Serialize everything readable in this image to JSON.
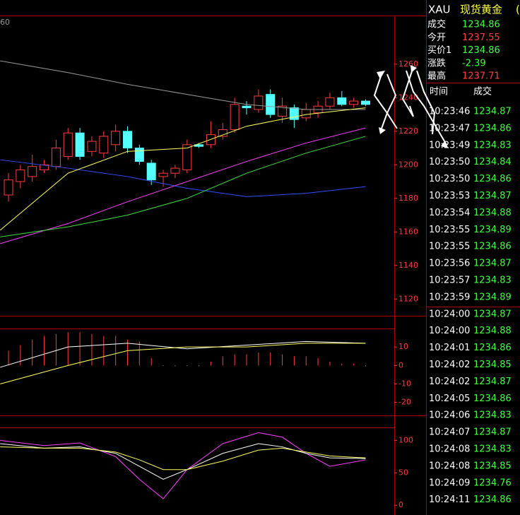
{
  "chart_label": "60",
  "chart_data": [
    {
      "type": "candlestick",
      "ylim": [
        1110,
        1289
      ],
      "yticks": [
        1260,
        1240,
        1220,
        1200,
        1180,
        1160,
        1140,
        1120
      ],
      "up_color": "#ff3c3c",
      "down_color": "#54ffff",
      "open": [
        1182,
        1190,
        1193,
        1197,
        1199,
        1205,
        1219,
        1208,
        1207,
        1212,
        1220,
        1210,
        1201,
        1193,
        1195,
        1197,
        1212,
        1212,
        1217,
        1221,
        1235,
        1233,
        1242,
        1229,
        1234,
        1228,
        1231,
        1235,
        1240,
        1236,
        1238
      ],
      "high": [
        1195,
        1200,
        1206,
        1203,
        1215,
        1222,
        1222,
        1217,
        1220,
        1224,
        1223,
        1212,
        1203,
        1197,
        1200,
        1215,
        1213,
        1226,
        1225,
        1240,
        1238,
        1245,
        1245,
        1240,
        1236,
        1237,
        1238,
        1243,
        1244,
        1240,
        1239
      ],
      "low": [
        1178,
        1186,
        1190,
        1195,
        1197,
        1203,
        1203,
        1205,
        1204,
        1208,
        1207,
        1200,
        1188,
        1187,
        1192,
        1195,
        1210,
        1210,
        1215,
        1219,
        1230,
        1231,
        1228,
        1225,
        1222,
        1226,
        1228,
        1233,
        1235,
        1234,
        1235
      ],
      "close": [
        1191,
        1197,
        1199,
        1200,
        1210,
        1219,
        1205,
        1214,
        1217,
        1220,
        1210,
        1202,
        1191,
        1195,
        1198,
        1212,
        1211,
        1218,
        1221,
        1236,
        1234,
        1241,
        1230,
        1235,
        1227,
        1233,
        1235,
        1240,
        1236,
        1238,
        1236
      ],
      "lines": [
        {
          "color": "#9a9a9a",
          "x": [
            -0.7,
            5,
            10,
            15,
            20,
            25,
            30
          ],
          "values": [
            1262,
            1255,
            1248,
            1242,
            1236,
            1233,
            1233
          ]
        },
        {
          "color": "#3050ff",
          "x": [
            -0.7,
            5,
            10,
            15,
            20,
            25,
            30
          ],
          "values": [
            1203,
            1198,
            1193,
            1186,
            1181,
            1183,
            1187
          ]
        },
        {
          "color": "#ff40ff",
          "x": [
            -0.7,
            5,
            10,
            15,
            20,
            25,
            30
          ],
          "values": [
            1153,
            1165,
            1178,
            1190,
            1202,
            1213,
            1222
          ]
        },
        {
          "color": "#40e040",
          "x": [
            -0.7,
            5,
            10,
            15,
            20,
            25,
            30
          ],
          "values": [
            1157,
            1163,
            1170,
            1180,
            1195,
            1207,
            1217
          ]
        },
        {
          "color": "#ffff60",
          "x": [
            -0.7,
            5,
            10,
            15,
            20,
            25,
            30
          ],
          "values": [
            1161,
            1195,
            1208,
            1210,
            1223,
            1230,
            1234
          ]
        }
      ]
    },
    {
      "type": "bar",
      "ylim": [
        -27,
        20
      ],
      "yticks": [
        10,
        0,
        -10,
        -20
      ],
      "color": "#ff3c3c",
      "neg_color": "#c8c8c8",
      "values": [
        8,
        11,
        14,
        16,
        17,
        18,
        18,
        17,
        16,
        16,
        14,
        13,
        4,
        -0.3,
        -0.3,
        -0.3,
        -0.3,
        2,
        5,
        6,
        6,
        7,
        7,
        6,
        5,
        5,
        4,
        2,
        1,
        1,
        -0.3
      ],
      "lines": [
        {
          "color": "#ffffff",
          "x": [
            -0.7,
            5,
            10,
            15,
            20,
            25,
            30
          ],
          "values": [
            -1,
            10,
            12,
            9,
            11,
            13,
            12
          ]
        },
        {
          "color": "#ffff60",
          "x": [
            -0.7,
            5,
            10,
            15,
            20,
            25,
            30
          ],
          "values": [
            -10,
            0,
            8,
            10,
            10,
            12,
            12
          ]
        }
      ]
    },
    {
      "type": "line",
      "ylim": [
        -15,
        120
      ],
      "yticks": [
        100,
        50,
        0
      ],
      "lines": [
        {
          "color": "#ff40ff",
          "x": [
            -0.7,
            3,
            6,
            9,
            11,
            13,
            15,
            18,
            21,
            23,
            25,
            27,
            30
          ],
          "values": [
            100,
            92,
            96,
            75,
            40,
            10,
            55,
            95,
            112,
            105,
            80,
            60,
            70
          ]
        },
        {
          "color": "#ffffff",
          "x": [
            -0.7,
            3,
            6,
            9,
            11,
            13,
            15,
            18,
            21,
            23,
            25,
            27,
            30
          ],
          "values": [
            95,
            88,
            90,
            80,
            60,
            40,
            55,
            80,
            95,
            90,
            80,
            73,
            72
          ]
        },
        {
          "color": "#ffff60",
          "x": [
            -0.7,
            3,
            6,
            9,
            11,
            13,
            15,
            18,
            21,
            23,
            25,
            27,
            30
          ],
          "values": [
            90,
            88,
            88,
            82,
            70,
            55,
            55,
            68,
            85,
            88,
            82,
            76,
            73
          ]
        }
      ]
    }
  ],
  "header": {
    "symbol": "XAU",
    "name": "现货黄金",
    "extra": "("
  },
  "quote": [
    {
      "label": "成交",
      "value": "1234.86",
      "dir": "down"
    },
    {
      "label": "今开",
      "value": "1237.55",
      "dir": "up"
    },
    {
      "label": "买价1",
      "value": "1234.86",
      "dir": "down"
    },
    {
      "label": "涨跌",
      "value": "-2.39",
      "dir": "down"
    },
    {
      "label": "最高",
      "value": "1237.71",
      "dir": "up"
    }
  ],
  "ticks_header": [
    "时间",
    "成交"
  ],
  "ticks": [
    [
      "10:23:46",
      "1234.87"
    ],
    [
      "10:23:47",
      "1234.86"
    ],
    [
      "10:23:49",
      "1234.83"
    ],
    [
      "10:23:50",
      "1234.84"
    ],
    [
      "10:23:50",
      "1234.86"
    ],
    [
      "10:23:53",
      "1234.87"
    ],
    [
      "10:23:54",
      "1234.88"
    ],
    [
      "10:23:55",
      "1234.89"
    ],
    [
      "10:23:55",
      "1234.86"
    ],
    [
      "10:23:56",
      "1234.87"
    ],
    [
      "10:23:57",
      "1234.83"
    ],
    [
      "10:23:59",
      "1234.89"
    ],
    [
      "10:24:00",
      "1234.87"
    ],
    [
      "10:24:00",
      "1234.88"
    ],
    [
      "10:24:01",
      "1234.86"
    ],
    [
      "10:24:02",
      "1234.85"
    ],
    [
      "10:24:02",
      "1234.87"
    ],
    [
      "10:24:05",
      "1234.86"
    ],
    [
      "10:24:06",
      "1234.83"
    ],
    [
      "10:24:07",
      "1234.87"
    ],
    [
      "10:24:08",
      "1234.83"
    ],
    [
      "10:24:08",
      "1234.85"
    ],
    [
      "10:24:09",
      "1234.76"
    ],
    [
      "10:24:11",
      "1234.86"
    ]
  ]
}
